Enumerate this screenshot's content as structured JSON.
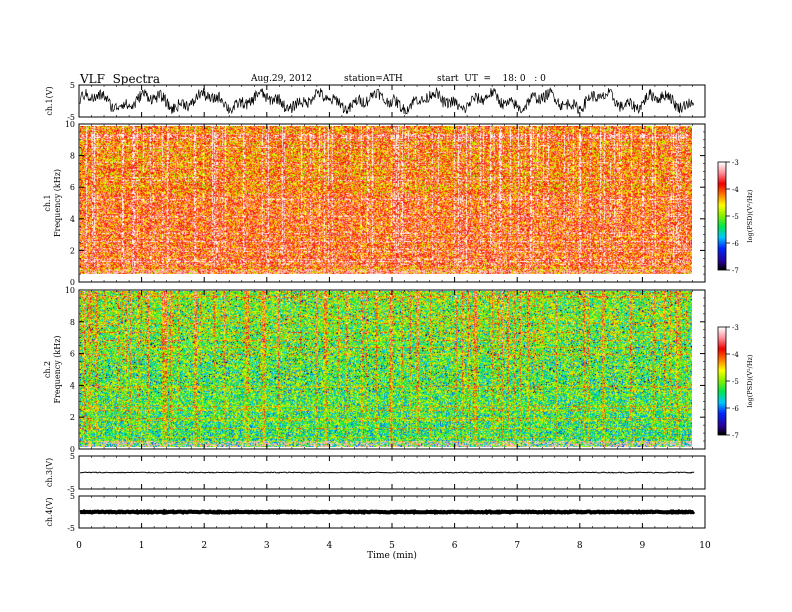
{
  "header": {
    "title": "VLF  Spectra",
    "date": "Aug.29, 2012",
    "station": "station=ATH",
    "start": "start  UT  =    18: 0   : 0"
  },
  "chart_data": [
    {
      "type": "line",
      "name": "ch1-waveform",
      "ylabel": "ch.1(V)",
      "ylim": [
        -5,
        5
      ],
      "y_ticks": [
        "5",
        "-5"
      ],
      "description_values": {
        "amplitude_range": [
          -4,
          4
        ]
      }
    },
    {
      "type": "heatmap",
      "name": "ch1-spectrogram",
      "ylabel_line1": "ch.1",
      "ylabel_line2": "Frequency  (kHz)",
      "ylim": [
        0,
        10
      ],
      "y_ticks": [
        "0",
        "2",
        "4",
        "6",
        "8",
        "10"
      ],
      "colorbar": {
        "label": "log(PSD)(V²/Hz)",
        "range": [
          -7,
          -3
        ],
        "ticks": [
          "-3",
          "-4",
          "-5",
          "-6",
          "-7"
        ]
      },
      "dominant_level": -4.2
    },
    {
      "type": "heatmap",
      "name": "ch2-spectrogram",
      "ylabel_line1": "ch.2",
      "ylabel_line2": "Frequency  (kHz)",
      "ylim": [
        0,
        10
      ],
      "y_ticks": [
        "0",
        "2",
        "4",
        "6",
        "8",
        "10"
      ],
      "colorbar": {
        "label": "log(PSD)(V²/Hz)",
        "range": [
          -7,
          -3
        ],
        "ticks": [
          "-3",
          "-4",
          "-5",
          "-6",
          "-7"
        ]
      },
      "dominant_level": -5.0
    },
    {
      "type": "line",
      "name": "ch3-waveform",
      "ylabel": "ch.3(V)",
      "ylim": [
        -5,
        5
      ],
      "y_ticks": [
        "5",
        "-5"
      ],
      "level": 0
    },
    {
      "type": "line",
      "name": "ch4-waveform",
      "ylabel": "ch.4(V)",
      "ylim": [
        -5,
        5
      ],
      "y_ticks": [
        "5",
        "-5"
      ],
      "level": 0
    }
  ],
  "xaxis": {
    "label": "Time  (min)",
    "xlim": [
      0,
      10
    ],
    "ticks": [
      "0",
      "1",
      "2",
      "3",
      "4",
      "5",
      "6",
      "7",
      "8",
      "9",
      "10"
    ],
    "data_end": 9.83
  }
}
